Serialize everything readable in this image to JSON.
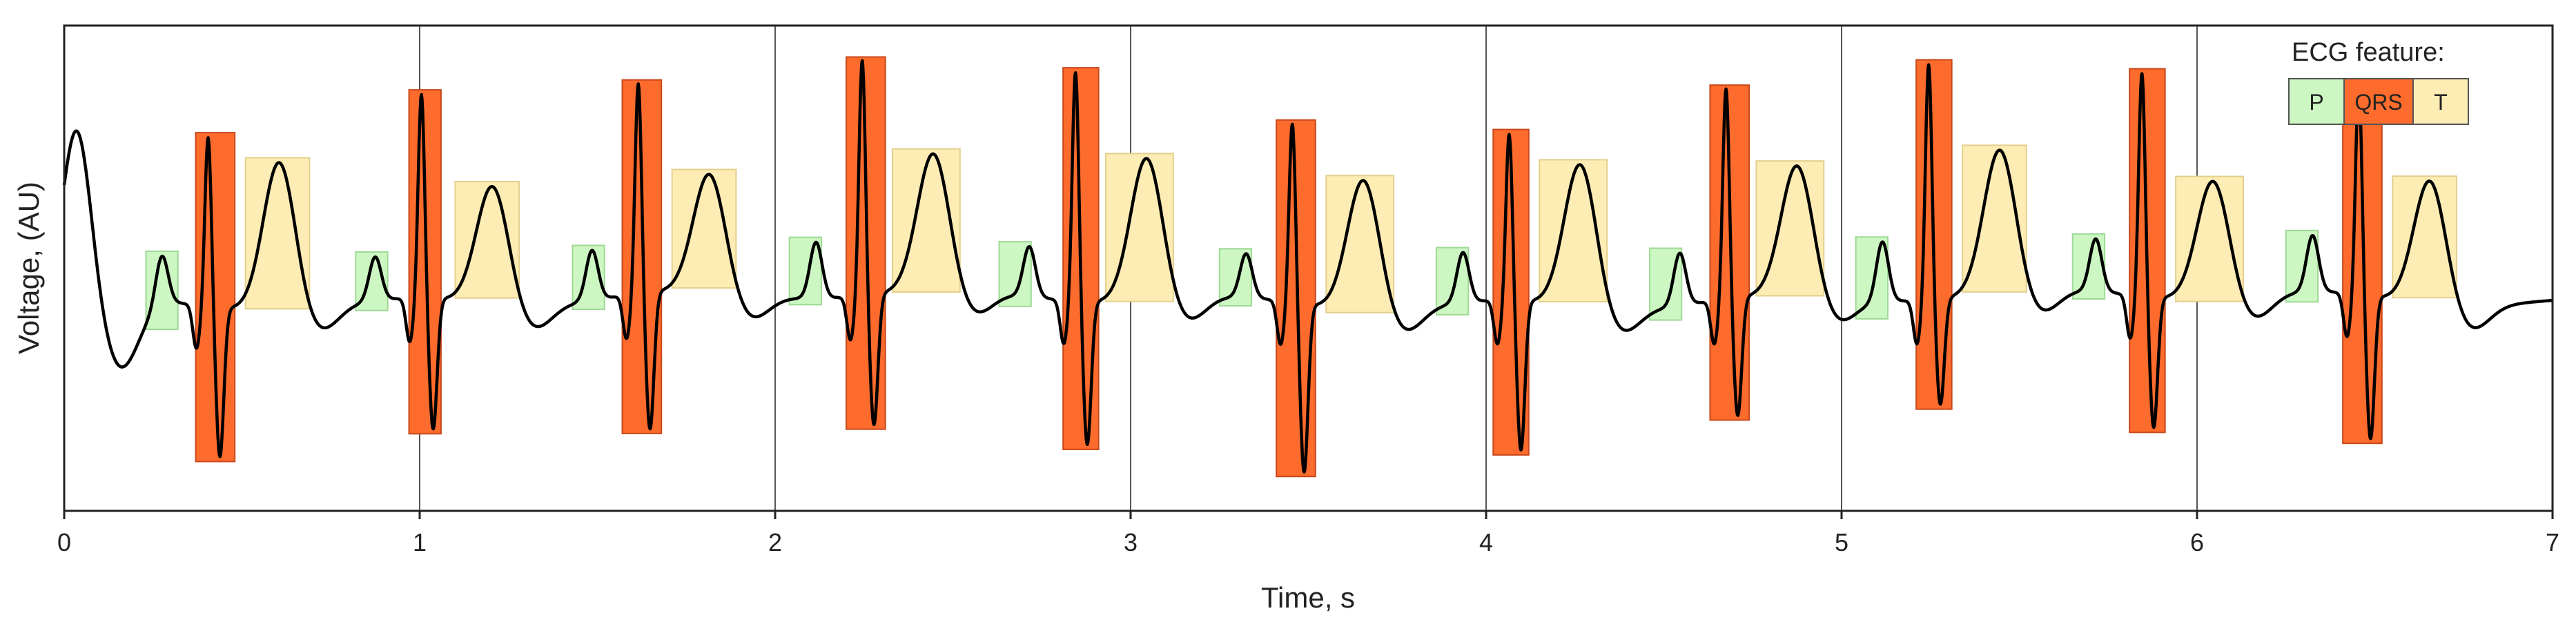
{
  "chart_data": {
    "type": "line",
    "xlabel": "Time, s",
    "ylabel": "Voltage, (AU)",
    "xlim": [
      0,
      7
    ],
    "ylim": [
      -1.7,
      2.2
    ],
    "x_ticks": [
      0,
      1,
      2,
      3,
      4,
      5,
      6,
      7
    ],
    "vertical_grid": true,
    "horizontal_grid": false,
    "legend": {
      "title": "ECG feature:",
      "position": "top-right",
      "items": [
        {
          "label": "P",
          "color": "#ccf7c2"
        },
        {
          "label": "QRS",
          "color": "#fd6b2d"
        },
        {
          "label": "T",
          "color": "#fdecb4"
        }
      ]
    },
    "colors": {
      "P": "#ccf7c2",
      "QRS": "#fd6b2d",
      "T": "#fdecb4",
      "trace": "#000000",
      "grid": "#555555"
    },
    "beat_onsets": [
      0.36,
      0.96,
      1.57,
      2.2,
      2.8,
      3.41,
      4.02,
      4.63,
      5.2,
      5.8,
      6.41
    ],
    "peak_amplitudes": [
      1.02,
      1.3,
      1.35,
      1.55,
      1.5,
      1.1,
      1.0,
      1.35,
      1.55,
      1.45,
      1.35
    ],
    "trough_amplitudes": [
      -0.95,
      -0.8,
      -0.85,
      -0.8,
      -0.9,
      -1.1,
      -0.95,
      -0.7,
      -0.6,
      -0.8,
      -0.9
    ],
    "t_wave_amplitudes": [
      1.2,
      0.95,
      0.95,
      1.1,
      1.15,
      1.05,
      1.15,
      1.05,
      1.15,
      0.95,
      1.0
    ],
    "p_wave_amplitudes": [
      0.4,
      0.35,
      0.4,
      0.45,
      0.4,
      0.35,
      0.4,
      0.42,
      0.48,
      0.42,
      0.45
    ],
    "features": {
      "P": [
        [
          0.23,
          0.32
        ],
        [
          0.82,
          0.91
        ],
        [
          1.43,
          1.52
        ],
        [
          2.04,
          2.13
        ],
        [
          2.63,
          2.72
        ],
        [
          3.25,
          3.34
        ],
        [
          3.86,
          3.95
        ],
        [
          4.46,
          4.55
        ],
        [
          5.04,
          5.13
        ],
        [
          5.65,
          5.74
        ],
        [
          6.25,
          6.34
        ]
      ],
      "QRS": [
        [
          0.37,
          0.48
        ],
        [
          0.97,
          1.06
        ],
        [
          1.57,
          1.68
        ],
        [
          2.2,
          2.31
        ],
        [
          2.81,
          2.91
        ],
        [
          3.41,
          3.52
        ],
        [
          4.02,
          4.12
        ],
        [
          4.63,
          4.74
        ],
        [
          5.21,
          5.31
        ],
        [
          5.81,
          5.91
        ],
        [
          6.41,
          6.52
        ]
      ],
      "T": [
        [
          0.51,
          0.69
        ],
        [
          1.1,
          1.28
        ],
        [
          1.71,
          1.89
        ],
        [
          2.33,
          2.52
        ],
        [
          2.93,
          3.12
        ],
        [
          3.55,
          3.74
        ],
        [
          4.15,
          4.34
        ],
        [
          4.76,
          4.95
        ],
        [
          5.34,
          5.52
        ],
        [
          5.94,
          6.13
        ],
        [
          6.55,
          6.73
        ]
      ]
    }
  }
}
